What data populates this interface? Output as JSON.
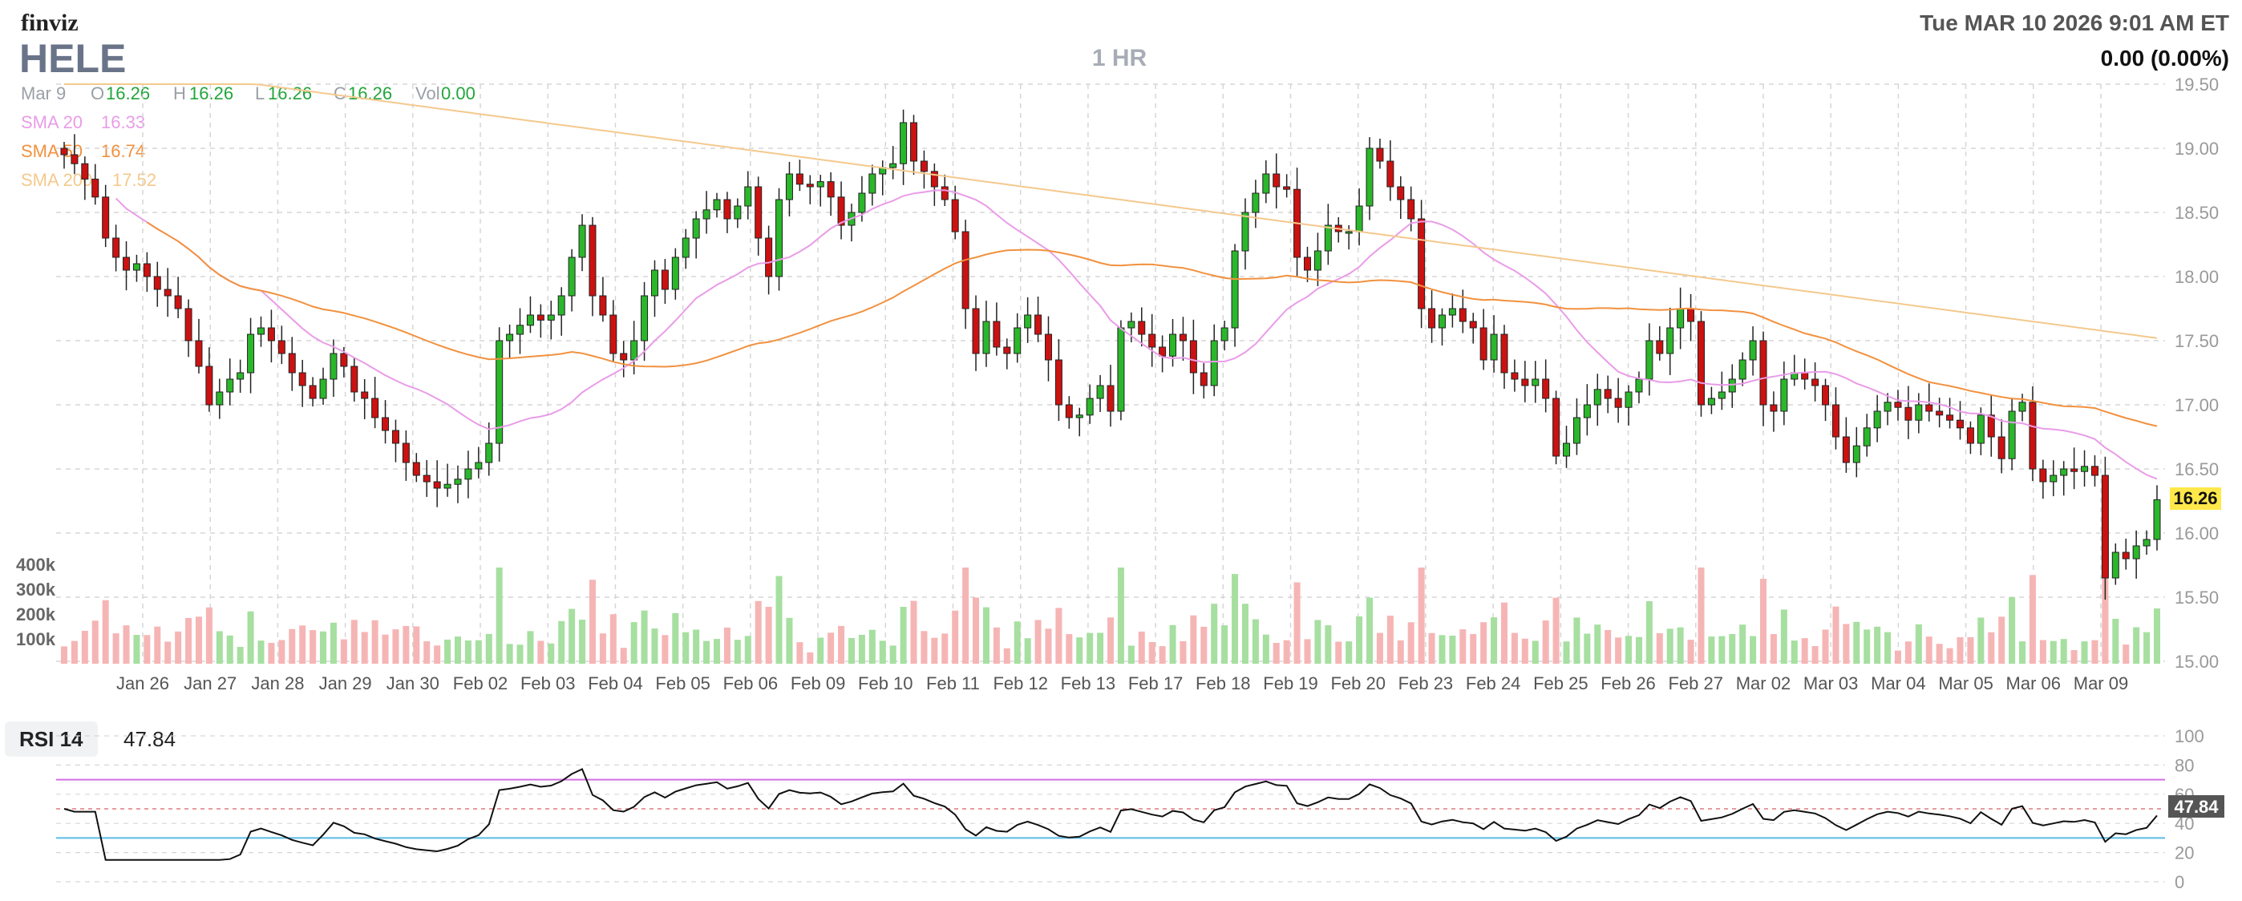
{
  "header": {
    "logo": "finviz",
    "ticker": "HELE",
    "timeframe": "1 HR",
    "datetime": "Tue MAR 10 2026 9:01 AM ET",
    "change": "0.00 (0.00%)"
  },
  "ohlc": {
    "date": "Mar 9",
    "o_label": "O",
    "o": "16.26",
    "h_label": "H",
    "h": "16.26",
    "l_label": "L",
    "l": "16.26",
    "c_label": "C",
    "c": "16.26",
    "vol_label": "Vol",
    "vol": "0.00"
  },
  "sma_legend": [
    {
      "label": "SMA 20",
      "value": "16.33",
      "color": "#e99ce8"
    },
    {
      "label": "SMA 50",
      "value": "16.74",
      "color": "#f2913f"
    },
    {
      "label": "SMA 200",
      "value": "17.52",
      "color": "#f4c98d"
    }
  ],
  "colors": {
    "up": "#2bb72b",
    "down": "#cc1111",
    "up_vol": "#a6dfa0",
    "down_vol": "#f6b5b5",
    "grid": "#d6d6d6",
    "last_price_bg": "#ffe84a",
    "rsi_line": "#111111",
    "rsi_upper": "#d36ee3",
    "rsi_lower": "#5bbbe3",
    "rsi_mid": "#e07a7a",
    "rsi_fill": "#8fd2ee"
  },
  "rsi": {
    "label": "RSI 14",
    "value": "47.84",
    "ticks": [
      "100",
      "80",
      "60",
      "40",
      "20",
      "0"
    ]
  },
  "chart_data": {
    "type": "candlestick",
    "interval": "1 HR",
    "y_ticks": [
      "19.50",
      "19.00",
      "18.50",
      "18.00",
      "17.50",
      "17.00",
      "16.50",
      "16.00",
      "15.50",
      "15.00"
    ],
    "ylim": [
      15.0,
      19.5
    ],
    "last_price": "16.26",
    "volume_ticks": [
      "400k",
      "300k",
      "200k",
      "100k"
    ],
    "x_labels": [
      "Jan 26",
      "Jan 27",
      "Jan 28",
      "Jan 29",
      "Jan 30",
      "Feb 02",
      "Feb 03",
      "Feb 04",
      "Feb 05",
      "Feb 06",
      "Feb 09",
      "Feb 10",
      "Feb 11",
      "Feb 12",
      "Feb 13",
      "Feb 17",
      "Feb 18",
      "Feb 19",
      "Feb 20",
      "Feb 23",
      "Feb 24",
      "Feb 25",
      "Feb 26",
      "Feb 27",
      "Mar 02",
      "Mar 03",
      "Mar 04",
      "Mar 05",
      "Mar 06",
      "Mar 09"
    ],
    "close": [
      18.95,
      18.88,
      18.76,
      18.62,
      18.3,
      18.15,
      18.05,
      18.1,
      18.0,
      17.9,
      17.85,
      17.75,
      17.5,
      17.3,
      17.0,
      17.1,
      17.2,
      17.25,
      17.55,
      17.6,
      17.5,
      17.4,
      17.25,
      17.15,
      17.05,
      17.2,
      17.4,
      17.3,
      17.1,
      17.05,
      16.9,
      16.8,
      16.7,
      16.55,
      16.45,
      16.4,
      16.35,
      16.38,
      16.42,
      16.5,
      16.55,
      16.7,
      17.5,
      17.55,
      17.62,
      17.7,
      17.66,
      17.7,
      17.85,
      18.15,
      18.4,
      17.85,
      17.7,
      17.4,
      17.35,
      17.5,
      17.85,
      18.05,
      17.9,
      18.15,
      18.3,
      18.45,
      18.52,
      18.6,
      18.45,
      18.55,
      18.7,
      18.3,
      18.0,
      18.6,
      18.8,
      18.72,
      18.7,
      18.74,
      18.62,
      18.4,
      18.5,
      18.65,
      18.8,
      18.85,
      18.88,
      19.2,
      18.9,
      18.82,
      18.7,
      18.6,
      18.35,
      17.75,
      17.4,
      17.65,
      17.45,
      17.4,
      17.6,
      17.7,
      17.55,
      17.35,
      17.0,
      16.9,
      16.92,
      17.05,
      17.15,
      16.95,
      17.6,
      17.65,
      17.55,
      17.45,
      17.38,
      17.55,
      17.5,
      17.25,
      17.15,
      17.5,
      17.6,
      18.2,
      18.5,
      18.65,
      18.8,
      18.7,
      18.68,
      18.15,
      18.05,
      18.2,
      18.4,
      18.35,
      18.35,
      18.55,
      19.0,
      18.9,
      18.7,
      18.6,
      18.45,
      17.75,
      17.6,
      17.7,
      17.75,
      17.65,
      17.6,
      17.35,
      17.55,
      17.25,
      17.2,
      17.15,
      17.2,
      17.05,
      16.6,
      16.7,
      16.9,
      17.0,
      17.12,
      17.05,
      16.98,
      17.1,
      17.2,
      17.5,
      17.4,
      17.6,
      17.75,
      17.65,
      17.0,
      17.05,
      17.1,
      17.2,
      17.35,
      17.5,
      17.0,
      16.95,
      17.2,
      17.25,
      17.2,
      17.15,
      17.0,
      16.75,
      16.55,
      16.68,
      16.82,
      16.95,
      17.02,
      16.98,
      16.88,
      17.0,
      16.95,
      16.92,
      16.88,
      16.82,
      16.7,
      16.92,
      16.75,
      16.58,
      16.95,
      17.02,
      16.5,
      16.4,
      16.45,
      16.5,
      16.48,
      16.52,
      16.45,
      15.65,
      15.85,
      15.8,
      15.9,
      15.95,
      16.26
    ],
    "series": [
      {
        "name": "SMA 20",
        "last": "16.33"
      },
      {
        "name": "SMA 50",
        "last": "16.74"
      },
      {
        "name": "SMA 200",
        "last": "17.52"
      }
    ]
  }
}
